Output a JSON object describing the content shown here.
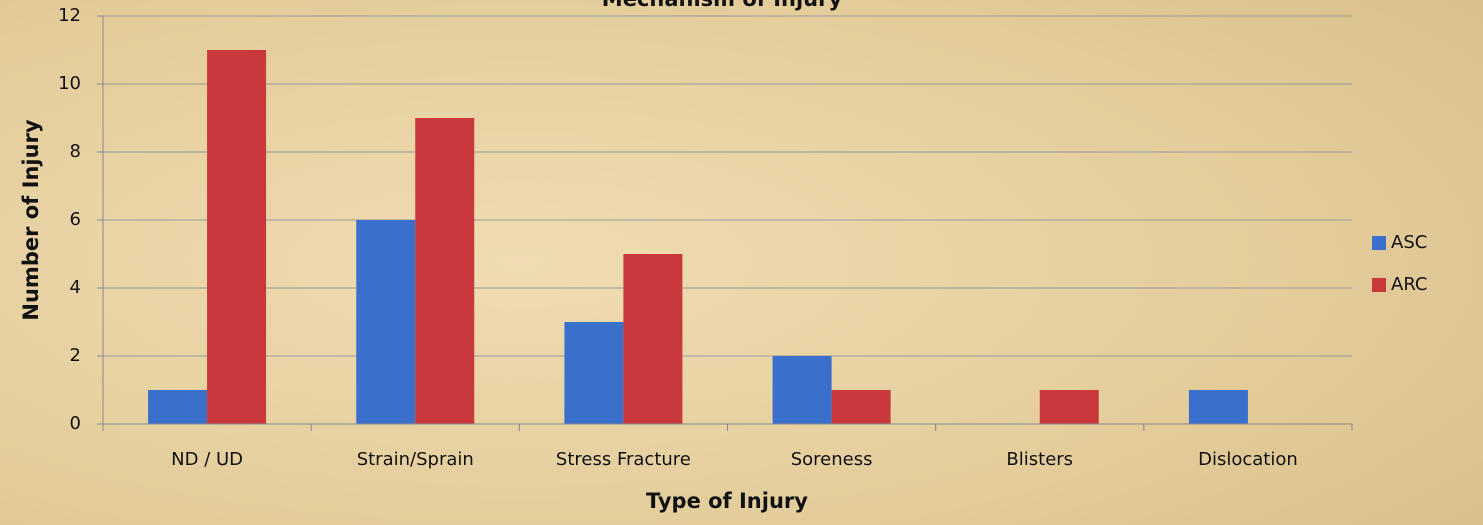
{
  "chart_data": {
    "type": "bar",
    "title": "Mechanism of Injury",
    "x_label": "Type of Injury",
    "y_label": "Number of Injury",
    "categories": [
      "ND / UD",
      "Strain/Sprain",
      "Stress Fracture",
      "Soreness",
      "Blisters",
      "Dislocation"
    ],
    "series": [
      {
        "name": "ASC",
        "color": "#3a6fcb",
        "values": [
          1,
          6,
          3,
          2,
          0,
          1
        ]
      },
      {
        "name": "ARC",
        "color": "#c9383a",
        "values": [
          11,
          9,
          5,
          1,
          1,
          0
        ]
      }
    ],
    "ylim": [
      0,
      12
    ],
    "yticks": [
      0,
      2,
      4,
      6,
      8,
      10,
      12
    ],
    "grid": true,
    "legend": "right"
  }
}
